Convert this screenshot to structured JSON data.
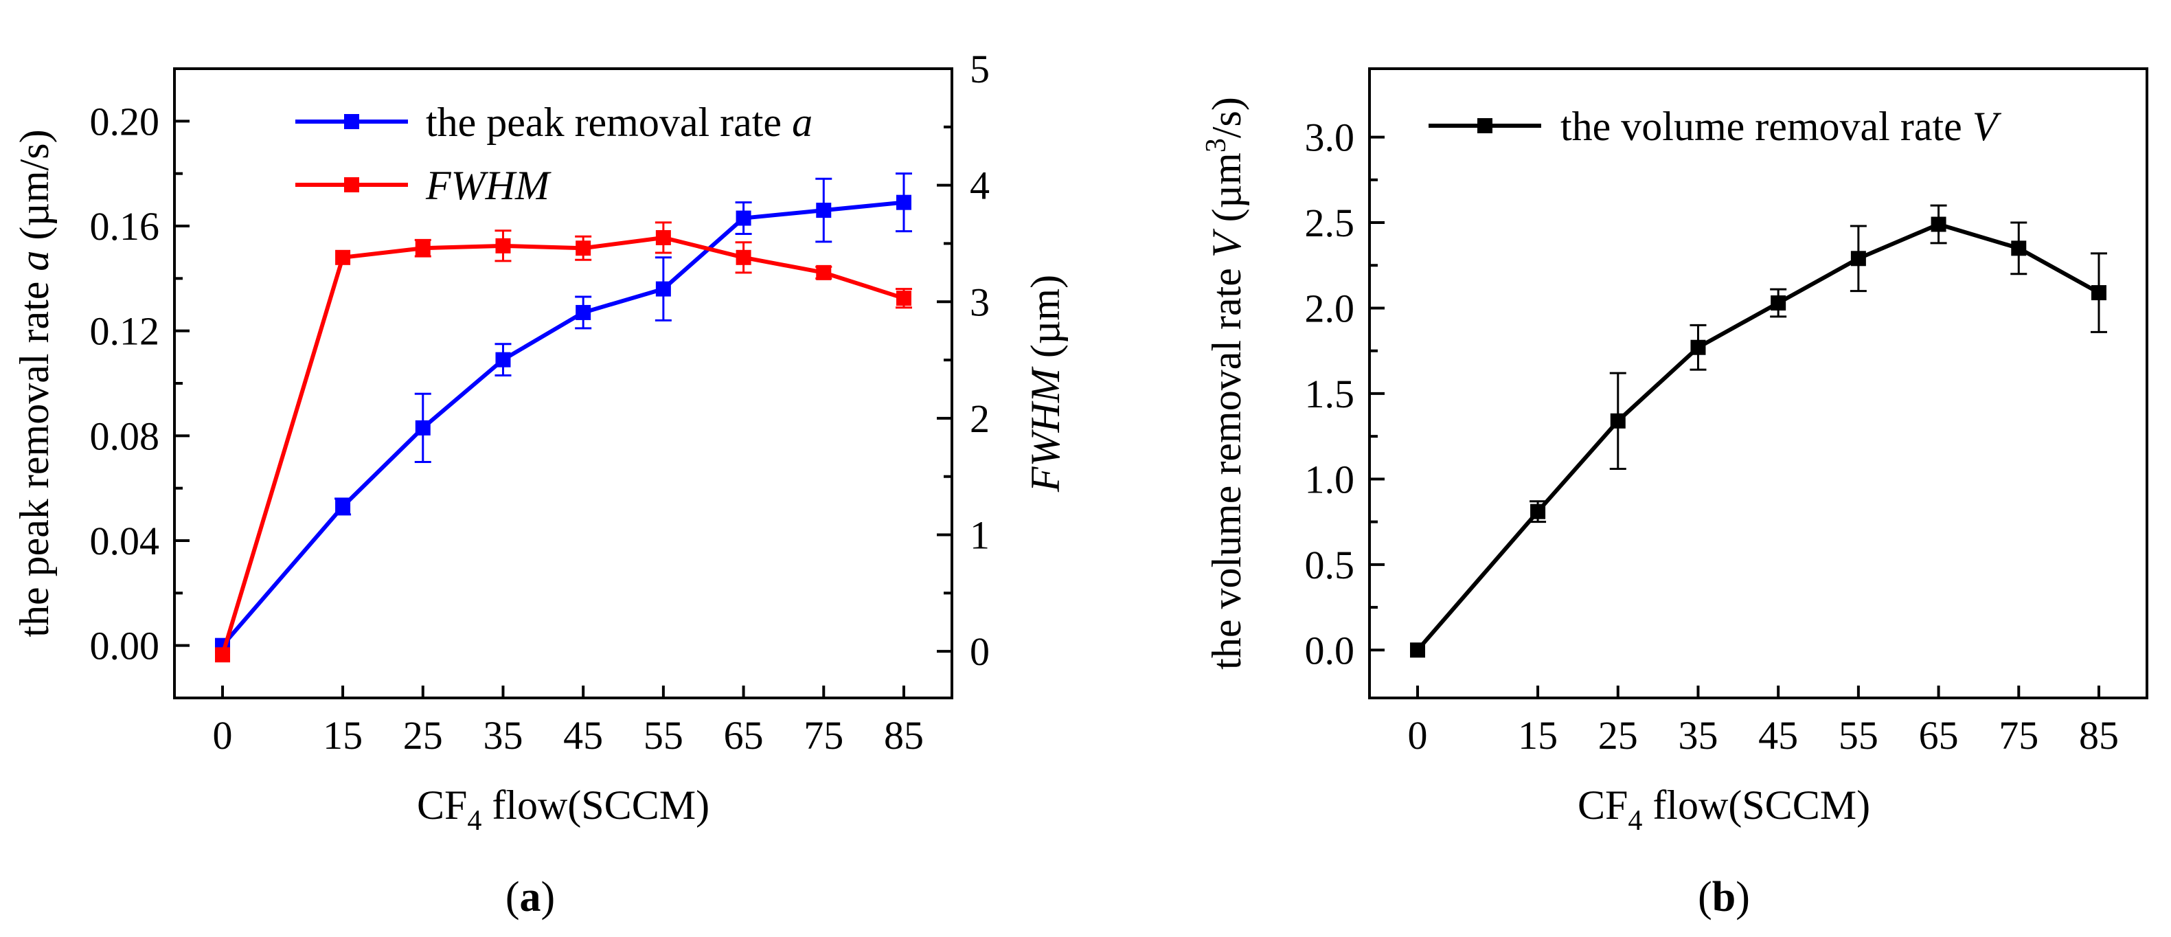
{
  "chart_data": [
    {
      "type": "line",
      "panel_label": "a",
      "xlabel": {
        "prefix": "CF",
        "sub": "4",
        "suffix": " flow(SCCM)"
      },
      "x": [
        0,
        15,
        25,
        35,
        45,
        55,
        65,
        75,
        85
      ],
      "x_ticks": [
        "0",
        "15",
        "25",
        "35",
        "45",
        "55",
        "65",
        "75",
        "85"
      ],
      "ylabel_left": {
        "prefix": "the peak removal rate ",
        "italic": "a",
        "suffix": " (µm/s)"
      },
      "ylim_left": [
        -0.02,
        0.22
      ],
      "y_ticks_left": [
        "0.00",
        "0.04",
        "0.08",
        "0.12",
        "0.16",
        "0.20"
      ],
      "ylabel_right": {
        "italic": "FWHM",
        "suffix": " (µm)"
      },
      "ylim_right": [
        -0.4,
        5
      ],
      "y_ticks_right": [
        "0",
        "1",
        "2",
        "3",
        "4",
        "5"
      ],
      "series": [
        {
          "name": "the peak removal rate a",
          "legend": {
            "text": "the peak removal rate ",
            "italic": "a"
          },
          "axis": "left",
          "color": "#0000ff",
          "values": [
            0.0,
            0.053,
            0.083,
            0.109,
            0.127,
            0.136,
            0.163,
            0.166,
            0.169
          ],
          "errors": [
            0.0,
            0.003,
            0.013,
            0.006,
            0.006,
            0.012,
            0.006,
            0.012,
            0.011
          ]
        },
        {
          "name": "FWHM",
          "legend": {
            "text": "",
            "italic": "FWHM"
          },
          "axis": "right",
          "color": "#ff0000",
          "values": [
            -0.03,
            3.38,
            3.46,
            3.48,
            3.46,
            3.55,
            3.38,
            3.25,
            3.03
          ],
          "errors": [
            0.0,
            0.0,
            0.07,
            0.13,
            0.1,
            0.13,
            0.13,
            0.05,
            0.08
          ]
        }
      ]
    },
    {
      "type": "line",
      "panel_label": "b",
      "xlabel": {
        "prefix": "CF",
        "sub": "4",
        "suffix": " flow(SCCM)"
      },
      "x": [
        0,
        15,
        25,
        35,
        45,
        55,
        65,
        75,
        85
      ],
      "x_ticks": [
        "0",
        "15",
        "25",
        "35",
        "45",
        "55",
        "65",
        "75",
        "85"
      ],
      "ylabel": {
        "prefix": "the volume removal rate ",
        "italic": "V",
        "unit_open": " (µm",
        "sup": "3",
        "unit_close": "/s)"
      },
      "ylim": [
        -0.28,
        3.4
      ],
      "y_ticks": [
        "0.0",
        "0.5",
        "1.0",
        "1.5",
        "2.0",
        "2.5",
        "3.0"
      ],
      "series": [
        {
          "name": "the volume removal rate V",
          "legend": {
            "text": "the volume removal rate ",
            "italic": "V"
          },
          "color": "#000000",
          "values": [
            0.0,
            0.81,
            1.34,
            1.77,
            2.03,
            2.29,
            2.49,
            2.35,
            2.09
          ],
          "errors": [
            0.0,
            0.06,
            0.28,
            0.13,
            0.08,
            0.19,
            0.11,
            0.15,
            0.23
          ]
        }
      ]
    }
  ]
}
